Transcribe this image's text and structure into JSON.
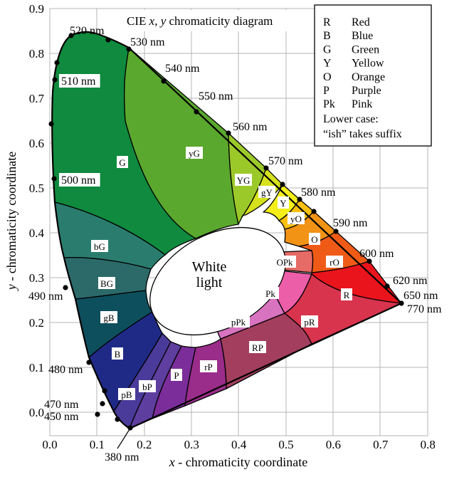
{
  "title": "CIE x, y chromaticity diagram",
  "title_plain": "CIE ",
  "title_x": "x",
  "title_sep": ", ",
  "title_y": "y",
  "title_rest": " chromaticity diagram",
  "x_axis": {
    "label_var": "x",
    "label_rest": " - chromaticity coordinate",
    "ticks": [
      "0.0",
      "0.1",
      "0.2",
      "0.3",
      "0.4",
      "0.5",
      "0.6",
      "0.7",
      "0.8"
    ],
    "range": [
      0,
      0.8
    ]
  },
  "y_axis": {
    "label_var": "y",
    "label_rest": " - chromaticity  coordinate",
    "ticks": [
      "0.0",
      "0.1",
      "0.2",
      "0.3",
      "0.4",
      "0.5",
      "0.6",
      "0.7",
      "0.8",
      "0.9"
    ],
    "range": [
      -0.05,
      0.9
    ]
  },
  "grid": true,
  "white_light": {
    "line1": "White",
    "line2": "light"
  },
  "regions": [
    {
      "label": "G",
      "color": "#0f8a3e"
    },
    {
      "label": "yG",
      "color": "#5aa82e"
    },
    {
      "label": "YG",
      "color": "#9cc92a"
    },
    {
      "label": "gY",
      "color": "#d6e21c"
    },
    {
      "label": "Y",
      "color": "#f4ee1a"
    },
    {
      "label": "yO",
      "color": "#f8c010"
    },
    {
      "label": "O",
      "color": "#f39316"
    },
    {
      "label": "rO",
      "color": "#ef5b16"
    },
    {
      "label": "R",
      "color": "#e9141c"
    },
    {
      "label": "bG",
      "color": "#2a7d6e"
    },
    {
      "label": "BG",
      "color": "#2c6a6a"
    },
    {
      "label": "gB",
      "color": "#0e4f5e"
    },
    {
      "label": "B",
      "color": "#1f2a87"
    },
    {
      "label": "pB",
      "color": "#4a3b9a"
    },
    {
      "label": "bP",
      "color": "#5e3e9e"
    },
    {
      "label": "P",
      "color": "#7b2d9a"
    },
    {
      "label": "rP",
      "color": "#9a2c8a"
    },
    {
      "label": "RP",
      "color": "#a33e5e"
    },
    {
      "label": "pPk",
      "color": "#d873c0"
    },
    {
      "label": "Pk",
      "color": "#ec5ea8"
    },
    {
      "label": "pR",
      "color": "#d8344e"
    },
    {
      "label": "OPk",
      "color": "#e66a66"
    }
  ],
  "wavelengths": [
    {
      "label": "520 nm"
    },
    {
      "label": "530 nm"
    },
    {
      "label": "540 nm"
    },
    {
      "label": "550 nm"
    },
    {
      "label": "560 nm"
    },
    {
      "label": "570 nm"
    },
    {
      "label": "580 nm"
    },
    {
      "label": "590 nm"
    },
    {
      "label": "600 nm"
    },
    {
      "label": "620 nm"
    },
    {
      "label": "650 nm"
    },
    {
      "label": "770 nm"
    },
    {
      "label": "510 nm"
    },
    {
      "label": "500 nm"
    },
    {
      "label": "490 nm"
    },
    {
      "label": "480 nm"
    },
    {
      "label": "470 nm"
    },
    {
      "label": "450 nm"
    },
    {
      "label": "380 nm"
    }
  ],
  "legend": [
    {
      "abbr": "R",
      "name": "Red"
    },
    {
      "abbr": "B",
      "name": "Blue"
    },
    {
      "abbr": "G",
      "name": "Green"
    },
    {
      "abbr": "Y",
      "name": " Yellow"
    },
    {
      "abbr": "O",
      "name": "Orange"
    },
    {
      "abbr": "P",
      "name": "Purple"
    },
    {
      "abbr": "Pk",
      "name": "Pink"
    }
  ],
  "legend_note1": "Lower case:",
  "legend_note2": "“ish” takes suffix"
}
